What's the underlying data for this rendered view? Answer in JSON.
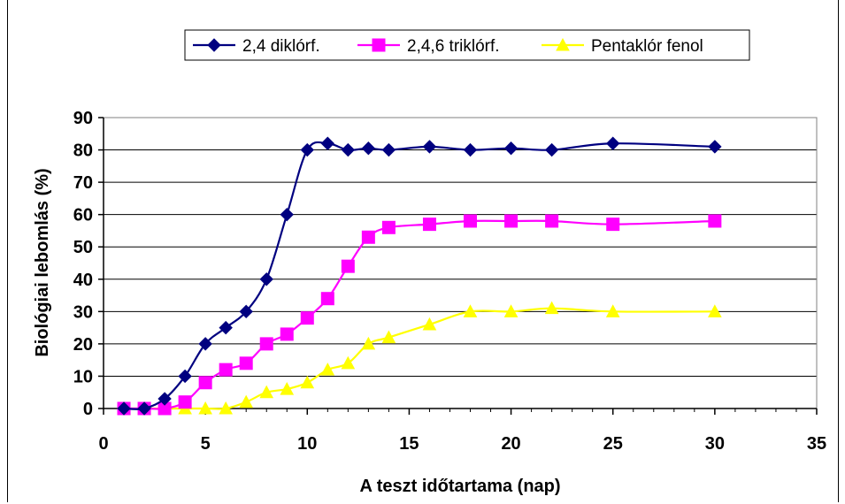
{
  "chart_data": {
    "type": "line",
    "xlabel": "A teszt időtartama (nap)",
    "ylabel": "Biológiai lebomlás (%)",
    "xlim": [
      0,
      35
    ],
    "ylim": [
      0,
      90
    ],
    "xticks": [
      0,
      5,
      10,
      15,
      20,
      25,
      30,
      35
    ],
    "yticks": [
      0,
      10,
      20,
      30,
      40,
      50,
      60,
      70,
      80,
      90
    ],
    "grid": "horizontal",
    "legend_position": "top",
    "smooth": true,
    "series": [
      {
        "name": "2,4 diklórf.",
        "color": "#000080",
        "marker": "diamond",
        "x": [
          1,
          2,
          3,
          4,
          5,
          6,
          7,
          8,
          9,
          10,
          11,
          12,
          13,
          14,
          16,
          18,
          20,
          22,
          25,
          30
        ],
        "y": [
          0,
          0,
          3,
          10,
          20,
          25,
          30,
          40,
          60,
          80,
          82,
          80,
          80.5,
          80,
          81,
          80,
          80.5,
          80,
          82,
          81
        ]
      },
      {
        "name": "2,4,6 triklórf.",
        "color": "#ff00ff",
        "marker": "square",
        "x": [
          1,
          2,
          3,
          4,
          5,
          6,
          7,
          8,
          9,
          10,
          11,
          12,
          13,
          14,
          16,
          18,
          20,
          22,
          25,
          30
        ],
        "y": [
          0,
          0,
          0,
          2,
          8,
          12,
          14,
          20,
          23,
          28,
          34,
          44,
          53,
          56,
          57,
          58,
          58,
          58,
          57,
          58
        ]
      },
      {
        "name": "Pentaklór fenol",
        "color": "#ffff00",
        "marker": "triangle",
        "x": [
          1,
          2,
          3,
          4,
          5,
          6,
          7,
          8,
          9,
          10,
          11,
          12,
          13,
          14,
          16,
          18,
          20,
          22,
          25,
          30
        ],
        "y": [
          0,
          0,
          0,
          0,
          0,
          0,
          2,
          5,
          6,
          8,
          12,
          14,
          20,
          22,
          26,
          30,
          30,
          31,
          30,
          30
        ]
      }
    ]
  }
}
